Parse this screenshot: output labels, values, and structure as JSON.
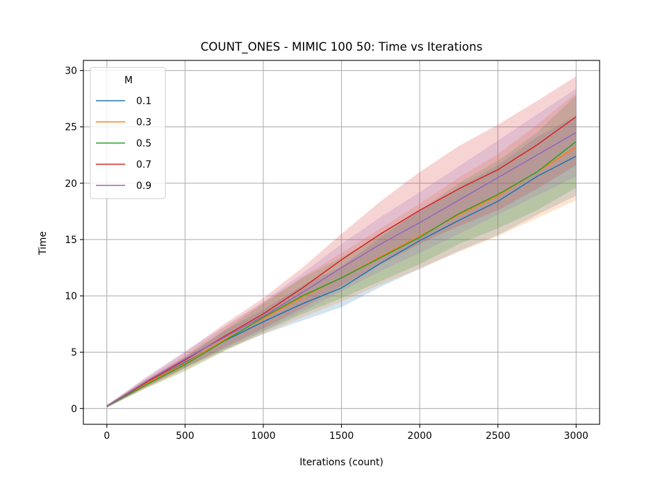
{
  "chart_data": {
    "type": "line",
    "title": "COUNT_ONES - MIMIC 100 50: Time vs Iterations",
    "xlabel": "Iterations (count)",
    "ylabel": "Time",
    "xlim": [
      -150,
      3150
    ],
    "ylim": [
      -1.4,
      30.9
    ],
    "x_ticks": [
      0,
      500,
      1000,
      1500,
      2000,
      2500,
      3000
    ],
    "y_ticks": [
      0,
      5,
      10,
      15,
      20,
      25,
      30
    ],
    "grid": true,
    "legend": {
      "title": "M",
      "placement": "top-left"
    },
    "x": [
      0,
      250,
      500,
      750,
      1000,
      1250,
      1500,
      1750,
      2000,
      2250,
      2500,
      2750,
      3000
    ],
    "series": [
      {
        "name": "0.1",
        "color": "#1f77b4",
        "values": [
          0.2,
          2.2,
          4.1,
          6.0,
          7.7,
          9.3,
          10.7,
          12.9,
          14.9,
          16.7,
          18.4,
          20.6,
          22.4
        ],
        "lower": [
          0.1,
          1.9,
          3.6,
          5.2,
          6.6,
          7.8,
          9.0,
          10.8,
          12.4,
          14.0,
          15.4,
          17.2,
          18.9
        ],
        "upper": [
          0.3,
          2.5,
          4.6,
          6.9,
          8.8,
          10.9,
          12.6,
          15.2,
          17.6,
          19.6,
          21.6,
          24.1,
          26.0
        ]
      },
      {
        "name": "0.3",
        "color": "#ff7f0e",
        "values": [
          0.2,
          2.2,
          4.0,
          6.1,
          8.0,
          9.9,
          11.6,
          13.5,
          15.3,
          17.2,
          18.9,
          21.0,
          23.2
        ],
        "lower": [
          0.1,
          1.8,
          3.4,
          5.1,
          6.6,
          8.1,
          9.5,
          11.0,
          12.4,
          13.9,
          15.3,
          16.9,
          18.5
        ],
        "upper": [
          0.3,
          2.6,
          4.7,
          7.2,
          9.4,
          11.7,
          13.8,
          16.0,
          18.2,
          20.5,
          22.6,
          25.2,
          28.0
        ]
      },
      {
        "name": "0.5",
        "color": "#2ca02c",
        "values": [
          0.2,
          2.1,
          3.9,
          6.0,
          8.1,
          10.0,
          11.6,
          13.4,
          15.2,
          17.3,
          19.0,
          21.0,
          23.7
        ],
        "lower": [
          0.1,
          1.8,
          3.3,
          5.1,
          6.8,
          8.4,
          9.8,
          11.3,
          12.8,
          14.6,
          16.0,
          17.6,
          19.6
        ],
        "upper": [
          0.3,
          2.4,
          4.5,
          6.9,
          9.3,
          11.6,
          13.4,
          15.5,
          17.6,
          20.0,
          22.0,
          24.5,
          27.8
        ]
      },
      {
        "name": "0.7",
        "color": "#d62728",
        "values": [
          0.2,
          2.3,
          4.3,
          6.4,
          8.4,
          10.7,
          13.2,
          15.5,
          17.6,
          19.5,
          21.2,
          23.4,
          25.9
        ],
        "lower": [
          0.1,
          1.9,
          3.6,
          5.4,
          7.1,
          8.9,
          10.9,
          12.8,
          14.6,
          16.2,
          17.6,
          19.5,
          21.6
        ],
        "upper": [
          0.3,
          2.7,
          5.0,
          7.5,
          9.8,
          12.5,
          15.5,
          18.4,
          21.0,
          23.3,
          25.2,
          27.3,
          29.5
        ]
      },
      {
        "name": "0.9",
        "color": "#9467bd",
        "values": [
          0.2,
          2.4,
          4.4,
          6.3,
          8.2,
          10.3,
          12.5,
          14.6,
          16.5,
          18.5,
          20.5,
          22.5,
          24.5
        ],
        "lower": [
          0.1,
          2.0,
          3.7,
          5.3,
          6.9,
          8.6,
          10.4,
          12.2,
          13.8,
          15.5,
          17.2,
          18.9,
          20.6
        ],
        "upper": [
          0.3,
          2.8,
          5.1,
          7.3,
          9.5,
          12.0,
          14.6,
          17.0,
          19.2,
          21.5,
          23.8,
          26.1,
          28.4
        ]
      }
    ]
  }
}
